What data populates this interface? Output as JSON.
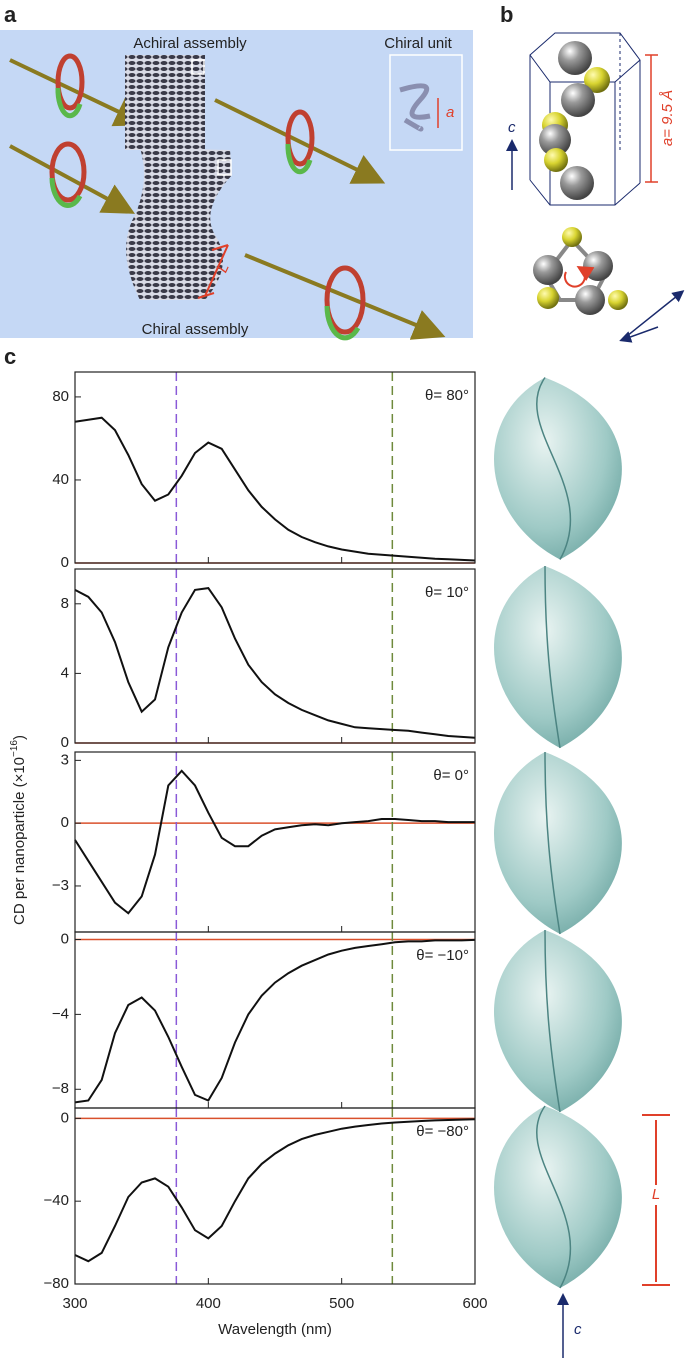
{
  "panels": {
    "a": {
      "label": "a",
      "achiral": "Achiral assembly",
      "unit": "Chiral unit",
      "chiral": "Chiral assembly",
      "pitch": "a",
      "length": "L"
    },
    "b": {
      "label": "b",
      "cell": "a= 9.5 Å",
      "axis": "c"
    },
    "c": {
      "label": "c",
      "length": "L",
      "axis": "c"
    }
  },
  "ylabel": {
    "text": "CD per nanoparticle (×10",
    "sup": "−16",
    "end": ")"
  },
  "chart_data": [
    {
      "type": "line",
      "annotation": "θ= 80°",
      "color": "#111111",
      "x": [
        300,
        310,
        320,
        330,
        340,
        350,
        360,
        370,
        380,
        390,
        400,
        410,
        420,
        430,
        440,
        450,
        460,
        470,
        480,
        490,
        500,
        510,
        520,
        530,
        540,
        550,
        560,
        570,
        580,
        590,
        600
      ],
      "values": [
        68,
        69,
        70,
        64,
        52,
        38,
        30,
        33,
        42,
        53,
        58,
        55,
        45,
        35,
        27,
        21,
        16,
        12.5,
        10,
        8,
        6.5,
        5.5,
        4.5,
        4,
        3.5,
        3,
        2.5,
        2,
        1.8,
        1.5,
        1.2
      ],
      "xlim": [
        300,
        600
      ],
      "xticks": [
        300,
        400,
        500,
        600
      ],
      "ylim": [
        0,
        92
      ],
      "yticks": [
        0,
        40,
        80
      ],
      "hline": {
        "y": 0,
        "color": "#d9502c"
      },
      "vlines": [
        {
          "x": 376,
          "color": "#8a5ad8"
        },
        {
          "x": 538,
          "color": "#6f8a3c"
        }
      ]
    },
    {
      "type": "line",
      "annotation": "θ= 10°",
      "color": "#111111",
      "x": [
        300,
        310,
        320,
        330,
        340,
        350,
        360,
        370,
        380,
        390,
        400,
        410,
        420,
        430,
        440,
        450,
        460,
        470,
        480,
        490,
        500,
        510,
        520,
        530,
        540,
        550,
        560,
        570,
        580,
        590,
        600
      ],
      "values": [
        8.8,
        8.4,
        7.5,
        5.8,
        3.5,
        1.8,
        2.5,
        5.5,
        7.5,
        8.8,
        8.9,
        7.8,
        6,
        4.5,
        3.5,
        2.8,
        2.3,
        1.9,
        1.6,
        1.3,
        1.1,
        0.9,
        0.85,
        0.8,
        0.75,
        0.7,
        0.6,
        0.5,
        0.4,
        0.35,
        0.3
      ],
      "xlim": [
        300,
        600
      ],
      "xticks": [
        300,
        400,
        500,
        600
      ],
      "ylim": [
        0,
        10
      ],
      "yticks": [
        0,
        4,
        8
      ],
      "hline": {
        "y": 0,
        "color": "#d9502c"
      },
      "vlines": [
        {
          "x": 376,
          "color": "#8a5ad8"
        },
        {
          "x": 538,
          "color": "#6f8a3c"
        }
      ]
    },
    {
      "type": "line",
      "annotation": "θ= 0°",
      "color": "#111111",
      "x": [
        300,
        310,
        320,
        330,
        340,
        350,
        360,
        370,
        380,
        390,
        400,
        410,
        420,
        430,
        440,
        450,
        460,
        470,
        480,
        490,
        500,
        510,
        520,
        530,
        540,
        550,
        560,
        570,
        580,
        590,
        600
      ],
      "values": [
        -0.8,
        -1.8,
        -2.8,
        -3.8,
        -4.3,
        -3.5,
        -1.5,
        1.8,
        2.5,
        1.8,
        0.5,
        -0.7,
        -1.1,
        -1.1,
        -0.6,
        -0.3,
        -0.2,
        -0.1,
        -0.05,
        -0.1,
        0,
        0.05,
        0.1,
        0.2,
        0.2,
        0.15,
        0.1,
        0.1,
        0.05,
        0.05,
        0.05
      ],
      "xlim": [
        300,
        600
      ],
      "xticks": [
        300,
        400,
        500,
        600
      ],
      "ylim": [
        -5.2,
        3.4
      ],
      "yticks": [
        {
          "value": -3,
          "label": "−3"
        },
        0,
        3
      ],
      "hline": {
        "y": 0,
        "color": "#d9502c"
      },
      "vlines": [
        {
          "x": 376,
          "color": "#8a5ad8"
        },
        {
          "x": 538,
          "color": "#6f8a3c"
        }
      ]
    },
    {
      "type": "line",
      "annotation": "θ= −10°",
      "color": "#111111",
      "x": [
        300,
        310,
        320,
        330,
        340,
        350,
        360,
        370,
        380,
        390,
        400,
        410,
        420,
        430,
        440,
        450,
        460,
        470,
        480,
        490,
        500,
        510,
        520,
        530,
        540,
        550,
        560,
        570,
        580,
        590,
        600
      ],
      "values": [
        -8.7,
        -8.6,
        -7.5,
        -5,
        -3.5,
        -3.1,
        -3.8,
        -5.2,
        -6.8,
        -8.3,
        -8.6,
        -7.4,
        -5.5,
        -4,
        -3,
        -2.3,
        -1.8,
        -1.4,
        -1.1,
        -0.8,
        -0.6,
        -0.45,
        -0.35,
        -0.25,
        -0.15,
        -0.1,
        -0.1,
        -0.05,
        -0.05,
        -0.05,
        -0.02
      ],
      "xlim": [
        300,
        600
      ],
      "xticks": [
        300,
        400,
        500,
        600
      ],
      "ylim": [
        -9,
        0.4
      ],
      "yticks": [
        {
          "value": -8,
          "label": "−8"
        },
        {
          "value": -4,
          "label": "−4"
        },
        0
      ],
      "hline": {
        "y": 0,
        "color": "#d9502c"
      },
      "vlines": [
        {
          "x": 376,
          "color": "#8a5ad8"
        },
        {
          "x": 538,
          "color": "#6f8a3c"
        }
      ]
    },
    {
      "type": "line",
      "annotation": "θ= −80°",
      "color": "#111111",
      "xlabel": "Wavelength (nm)",
      "x": [
        300,
        310,
        320,
        330,
        340,
        350,
        360,
        370,
        380,
        390,
        400,
        410,
        420,
        430,
        440,
        450,
        460,
        470,
        480,
        490,
        500,
        510,
        520,
        530,
        540,
        550,
        560,
        570,
        580,
        590,
        600
      ],
      "values": [
        -66,
        -69,
        -65,
        -52,
        -38,
        -31,
        -29,
        -33,
        -43,
        -54,
        -58,
        -52,
        -40,
        -29,
        -22,
        -17,
        -13,
        -10,
        -8,
        -6.5,
        -5,
        -4,
        -3.2,
        -2.5,
        -2,
        -1.6,
        -1.3,
        -1,
        -0.8,
        -0.6,
        -0.4
      ],
      "xlim": [
        300,
        600
      ],
      "xticks": [
        300,
        400,
        500,
        600
      ],
      "ylim": [
        -80,
        5
      ],
      "yticks": [
        {
          "value": -80,
          "label": "−80"
        },
        {
          "value": -40,
          "label": "−40"
        },
        0
      ],
      "hline": {
        "y": 0,
        "color": "#d9502c"
      },
      "vlines": [
        {
          "x": 376,
          "color": "#8a5ad8"
        },
        {
          "x": 538,
          "color": "#6f8a3c"
        }
      ]
    }
  ]
}
